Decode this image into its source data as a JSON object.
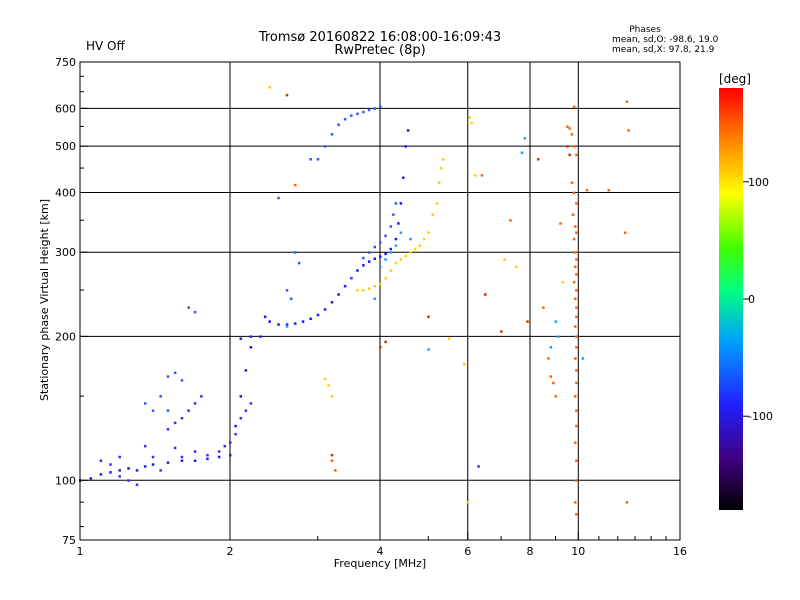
{
  "header": {
    "title_line1": "Tromsø 20160822 16:08:00-16:09:43",
    "title_line2": "RwPretec (8p)",
    "status": "HV Off",
    "status_color": "#cc0000",
    "phase_title": "Phases",
    "phase_o": "mean, sd,O: -98.6, 19.0",
    "phase_x": "mean, sd,X:  97.8, 21.9"
  },
  "chart_data": {
    "type": "scatter",
    "xlabel": "Frequency [MHz]",
    "ylabel": "Stationary phase Virtual Height [km]",
    "x_scale": "log2",
    "y_scale": "log",
    "xlim": [
      1,
      16
    ],
    "ylim": [
      75,
      750
    ],
    "x_ticks": [
      1,
      2,
      4,
      6,
      8,
      10,
      16
    ],
    "x_tick_labels": [
      "1",
      "2",
      "4",
      "6",
      "8",
      "10",
      "16"
    ],
    "x_grid": [
      2,
      4,
      6,
      8,
      10
    ],
    "y_ticks": [
      75,
      100,
      200,
      300,
      400,
      500,
      600,
      750
    ],
    "y_tick_labels": [
      "75",
      "100",
      "200",
      "300",
      "400",
      "500",
      "600",
      "750"
    ],
    "y_grid": [
      100,
      200,
      300,
      400,
      500,
      600
    ],
    "grid": true,
    "colorbar": {
      "label": "[deg]",
      "range": [
        -180,
        180
      ],
      "ticks": [
        100,
        0,
        -100
      ],
      "tick_labels": [
        "100",
        "0",
        "-100"
      ]
    },
    "series": [
      {
        "color": "#1a1aff",
        "points": [
          [
            1.0,
            100
          ],
          [
            1.05,
            101
          ],
          [
            1.1,
            103
          ],
          [
            1.15,
            104
          ],
          [
            1.2,
            105
          ],
          [
            1.25,
            106
          ],
          [
            1.3,
            105
          ],
          [
            1.35,
            107
          ],
          [
            1.4,
            108
          ],
          [
            1.5,
            109
          ],
          [
            1.6,
            110
          ],
          [
            1.7,
            110
          ],
          [
            1.8,
            111
          ],
          [
            1.9,
            112
          ],
          [
            2.0,
            113
          ],
          [
            2.05,
            130
          ],
          [
            2.1,
            150
          ],
          [
            2.15,
            170
          ],
          [
            2.2,
            190
          ],
          [
            2.1,
            198
          ],
          [
            2.2,
            200
          ],
          [
            2.3,
            200
          ],
          [
            2.35,
            220
          ],
          [
            2.4,
            215
          ],
          [
            2.5,
            212
          ],
          [
            2.6,
            212
          ],
          [
            2.7,
            213
          ],
          [
            2.8,
            215
          ],
          [
            2.9,
            218
          ],
          [
            3.0,
            222
          ],
          [
            3.1,
            228
          ],
          [
            3.2,
            236
          ],
          [
            3.3,
            245
          ],
          [
            3.4,
            255
          ],
          [
            3.5,
            265
          ],
          [
            3.6,
            275
          ],
          [
            3.7,
            282
          ],
          [
            3.8,
            287
          ],
          [
            3.9,
            291
          ],
          [
            4.0,
            294
          ],
          [
            4.1,
            298
          ],
          [
            4.2,
            305
          ],
          [
            4.3,
            320
          ],
          [
            4.35,
            345
          ],
          [
            4.4,
            380
          ],
          [
            4.45,
            430
          ],
          [
            4.5,
            500
          ],
          [
            4.55,
            540
          ]
        ]
      },
      {
        "color": "#3355ff",
        "points": [
          [
            3.0,
            470
          ],
          [
            3.1,
            500
          ],
          [
            3.2,
            530
          ],
          [
            3.3,
            555
          ],
          [
            3.4,
            570
          ],
          [
            3.5,
            580
          ],
          [
            3.6,
            585
          ],
          [
            3.7,
            590
          ],
          [
            3.8,
            596
          ],
          [
            3.9,
            600
          ],
          [
            4.0,
            605
          ],
          [
            3.5,
            265
          ],
          [
            3.7,
            292
          ],
          [
            3.8,
            300
          ],
          [
            3.9,
            308
          ],
          [
            4.0,
            315
          ],
          [
            4.1,
            325
          ],
          [
            4.2,
            340
          ],
          [
            4.25,
            360
          ],
          [
            4.3,
            380
          ],
          [
            2.7,
            300
          ],
          [
            2.75,
            285
          ],
          [
            2.6,
            250
          ],
          [
            2.65,
            240
          ],
          [
            2.5,
            390
          ],
          [
            1.5,
            165
          ],
          [
            1.55,
            168
          ],
          [
            1.6,
            162
          ],
          [
            1.45,
            150
          ],
          [
            1.4,
            140
          ],
          [
            1.35,
            145
          ],
          [
            1.5,
            140
          ],
          [
            1.65,
            230
          ],
          [
            1.7,
            225
          ],
          [
            2.9,
            470
          ]
        ]
      },
      {
        "color": "#5a1aff",
        "points": [
          [
            1.1,
            110
          ],
          [
            1.15,
            108
          ],
          [
            1.2,
            112
          ],
          [
            1.25,
            100
          ],
          [
            1.3,
            98
          ],
          [
            1.2,
            102
          ],
          [
            1.4,
            112
          ],
          [
            1.45,
            105
          ],
          [
            1.6,
            112
          ],
          [
            1.7,
            115
          ],
          [
            1.8,
            113
          ],
          [
            1.9,
            115
          ],
          [
            1.95,
            118
          ],
          [
            2.0,
            120
          ],
          [
            2.05,
            125
          ],
          [
            2.1,
            135
          ],
          [
            2.15,
            140
          ],
          [
            2.2,
            145
          ],
          [
            1.5,
            128
          ],
          [
            1.55,
            132
          ],
          [
            1.6,
            135
          ],
          [
            1.65,
            140
          ],
          [
            1.7,
            145
          ],
          [
            1.75,
            150
          ],
          [
            6.3,
            107
          ],
          [
            1.55,
            117
          ],
          [
            1.35,
            118
          ]
        ]
      },
      {
        "color": "#1aa0ff",
        "points": [
          [
            4.0,
            280
          ],
          [
            4.1,
            290
          ],
          [
            4.2,
            300
          ],
          [
            4.3,
            310
          ],
          [
            4.4,
            330
          ],
          [
            3.9,
            240
          ],
          [
            2.6,
            210
          ],
          [
            5.0,
            188
          ],
          [
            7.8,
            520
          ],
          [
            7.7,
            485
          ],
          [
            9.0,
            215
          ],
          [
            9.1,
            200
          ],
          [
            8.8,
            190
          ],
          [
            10.2,
            180
          ],
          [
            4.6,
            320
          ]
        ]
      },
      {
        "color": "#ffd000",
        "points": [
          [
            3.6,
            250
          ],
          [
            3.7,
            250
          ],
          [
            3.8,
            252
          ],
          [
            3.9,
            255
          ],
          [
            4.0,
            258
          ],
          [
            4.1,
            265
          ],
          [
            4.2,
            275
          ],
          [
            4.3,
            285
          ],
          [
            4.4,
            290
          ],
          [
            4.5,
            295
          ],
          [
            4.6,
            300
          ],
          [
            4.7,
            305
          ],
          [
            4.8,
            310
          ],
          [
            4.9,
            320
          ],
          [
            5.0,
            330
          ],
          [
            5.1,
            360
          ],
          [
            5.2,
            380
          ],
          [
            5.25,
            420
          ],
          [
            5.3,
            450
          ],
          [
            5.35,
            470
          ],
          [
            3.1,
            163
          ],
          [
            3.15,
            158
          ],
          [
            3.2,
            150
          ],
          [
            2.4,
            665
          ],
          [
            6.05,
            575
          ],
          [
            6.1,
            560
          ],
          [
            6.2,
            435
          ],
          [
            7.1,
            290
          ],
          [
            7.5,
            280
          ],
          [
            5.5,
            198
          ],
          [
            5.9,
            175
          ],
          [
            6.0,
            90
          ],
          [
            9.3,
            260
          ]
        ]
      },
      {
        "color": "#ff6600",
        "points": [
          [
            2.7,
            415
          ],
          [
            3.2,
            110
          ],
          [
            3.25,
            105
          ],
          [
            6.4,
            435
          ],
          [
            7.3,
            350
          ],
          [
            8.7,
            180
          ],
          [
            8.8,
            165
          ],
          [
            8.9,
            160
          ],
          [
            9.0,
            150
          ],
          [
            9.5,
            550
          ],
          [
            9.6,
            545
          ],
          [
            9.7,
            530
          ],
          [
            9.8,
            500
          ],
          [
            9.9,
            480
          ],
          [
            9.7,
            420
          ],
          [
            9.8,
            400
          ],
          [
            9.9,
            380
          ],
          [
            9.75,
            360
          ],
          [
            9.85,
            340
          ],
          [
            9.9,
            330
          ],
          [
            9.8,
            320
          ],
          [
            9.85,
            300
          ],
          [
            9.9,
            290
          ],
          [
            9.85,
            280
          ],
          [
            9.9,
            270
          ],
          [
            9.8,
            260
          ],
          [
            9.9,
            250
          ],
          [
            9.85,
            240
          ],
          [
            9.9,
            230
          ],
          [
            9.9,
            220
          ],
          [
            9.85,
            210
          ],
          [
            9.9,
            200
          ],
          [
            9.9,
            190
          ],
          [
            9.85,
            180
          ],
          [
            9.9,
            170
          ],
          [
            9.9,
            160
          ],
          [
            9.85,
            150
          ],
          [
            9.9,
            140
          ],
          [
            9.9,
            130
          ],
          [
            9.85,
            120
          ],
          [
            9.9,
            110
          ],
          [
            9.9,
            100
          ],
          [
            9.85,
            90
          ],
          [
            9.9,
            85
          ],
          [
            10.4,
            405
          ],
          [
            11.5,
            405
          ],
          [
            12.5,
            620
          ],
          [
            12.6,
            540
          ],
          [
            12.4,
            330
          ],
          [
            12.5,
            90
          ],
          [
            9.8,
            605
          ],
          [
            9.2,
            345
          ],
          [
            8.5,
            230
          ]
        ]
      },
      {
        "color": "#cc3300",
        "points": [
          [
            2.6,
            640
          ],
          [
            3.2,
            113
          ],
          [
            4.0,
            190
          ],
          [
            4.1,
            195
          ],
          [
            5.0,
            220
          ],
          [
            6.5,
            245
          ],
          [
            7.0,
            205
          ],
          [
            7.9,
            215
          ],
          [
            8.3,
            470
          ],
          [
            9.5,
            500
          ],
          [
            9.6,
            480
          ]
        ]
      }
    ]
  }
}
